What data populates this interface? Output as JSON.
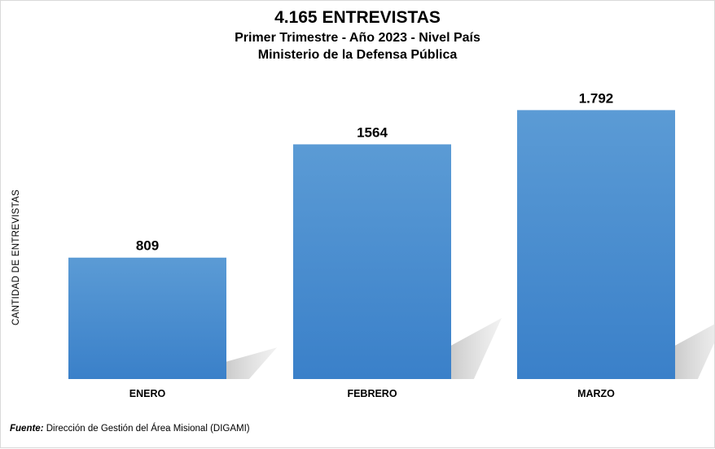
{
  "chart_data": {
    "type": "bar",
    "title": "4.165 ENTREVISTAS",
    "subtitle_lines": [
      "Primer Trimestre - Año 2023 - Nivel País",
      "Ministerio de la Defensa Pública"
    ],
    "ylabel": "CANTIDAD DE ENTREVISTAS",
    "xlabel": "",
    "categories": [
      "ENERO",
      "FEBRERO",
      "MARZO"
    ],
    "values": [
      809,
      1564,
      1792
    ],
    "data_labels": [
      "809",
      "1564",
      "1.792"
    ],
    "ylim": [
      0,
      2200
    ],
    "grid": false,
    "legend": "none",
    "bar_color_top": "#5b9bd5",
    "bar_color_bottom": "#3a80c9"
  },
  "source": {
    "label": "Fuente:",
    "text": " Dirección de Gestión del Área Misional (DIGAMI)"
  }
}
